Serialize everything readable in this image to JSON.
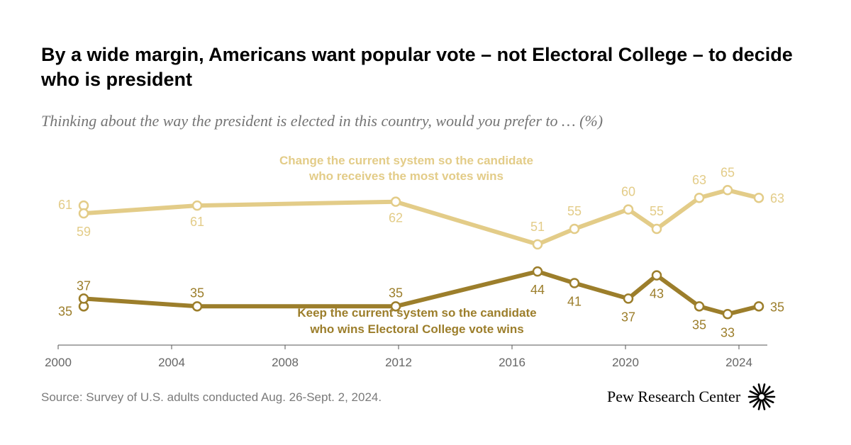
{
  "title": "By a wide margin, Americans want popular vote – not Electoral College – to decide who is president",
  "subtitle": "Thinking about the way the president is elected in this country, would you prefer to … (%)",
  "source": "Source: Survey of U.S. adults conducted Aug. 26-Sept. 2, 2024.",
  "brand": {
    "name": "Pew Research Center",
    "logo_icon": "pew-sunburst-icon"
  },
  "colors": {
    "popular_vote": "#e3cc88",
    "electoral_college": "#9c7e2b",
    "axis": "#555555",
    "tick_label": "#666666"
  },
  "chart_data": {
    "type": "line",
    "title": "By a wide margin, Americans want popular vote – not Electoral College – to decide who is president",
    "xlabel": "",
    "ylabel": "%",
    "xlim": [
      2000,
      2025
    ],
    "ylim": [
      25,
      72
    ],
    "grid": false,
    "x_ticks": [
      2000,
      2004,
      2008,
      2012,
      2016,
      2020,
      2024
    ],
    "series": [
      {
        "name": "Change the current system so the candidate who receives the most votes wins",
        "label_lines": [
          "Change the current system so the candidate",
          "who receives the most votes wins"
        ],
        "color_key": "popular_vote",
        "points": [
          {
            "x": 2000.9,
            "y": 61,
            "label": "61",
            "connected": false
          },
          {
            "x": 2000.9,
            "y": 59,
            "label": "59",
            "connected": true
          },
          {
            "x": 2004.9,
            "y": 61,
            "label": "61",
            "connected": true
          },
          {
            "x": 2011.9,
            "y": 62,
            "label": "62",
            "connected": true
          },
          {
            "x": 2016.9,
            "y": 51,
            "label": "51",
            "connected": true
          },
          {
            "x": 2018.2,
            "y": 55,
            "label": "55",
            "connected": true
          },
          {
            "x": 2020.1,
            "y": 60,
            "label": "60",
            "connected": true
          },
          {
            "x": 2021.1,
            "y": 55,
            "label": "55",
            "connected": true
          },
          {
            "x": 2022.6,
            "y": 63,
            "label": "63",
            "connected": true
          },
          {
            "x": 2023.6,
            "y": 65,
            "label": "65",
            "connected": true
          },
          {
            "x": 2024.7,
            "y": 63,
            "label": "63",
            "connected": true
          }
        ]
      },
      {
        "name": "Keep the current system so the candidate who wins Electoral College vote wins",
        "label_lines": [
          "Keep the current system so the candidate",
          "who wins Electoral College vote wins"
        ],
        "color_key": "electoral_college",
        "points": [
          {
            "x": 2000.9,
            "y": 35,
            "label": "35",
            "connected": false
          },
          {
            "x": 2000.9,
            "y": 37,
            "label": "37",
            "connected": true
          },
          {
            "x": 2004.9,
            "y": 35,
            "label": "35",
            "connected": true
          },
          {
            "x": 2011.9,
            "y": 35,
            "label": "35",
            "connected": true
          },
          {
            "x": 2016.9,
            "y": 44,
            "label": "44",
            "connected": true
          },
          {
            "x": 2018.2,
            "y": 41,
            "label": "41",
            "connected": true
          },
          {
            "x": 2020.1,
            "y": 37,
            "label": "37",
            "connected": true
          },
          {
            "x": 2021.1,
            "y": 43,
            "label": "43",
            "connected": true
          },
          {
            "x": 2022.6,
            "y": 35,
            "label": "35",
            "connected": true
          },
          {
            "x": 2023.6,
            "y": 33,
            "label": "33",
            "connected": true
          },
          {
            "x": 2024.7,
            "y": 35,
            "label": "35",
            "connected": true
          }
        ]
      }
    ]
  }
}
